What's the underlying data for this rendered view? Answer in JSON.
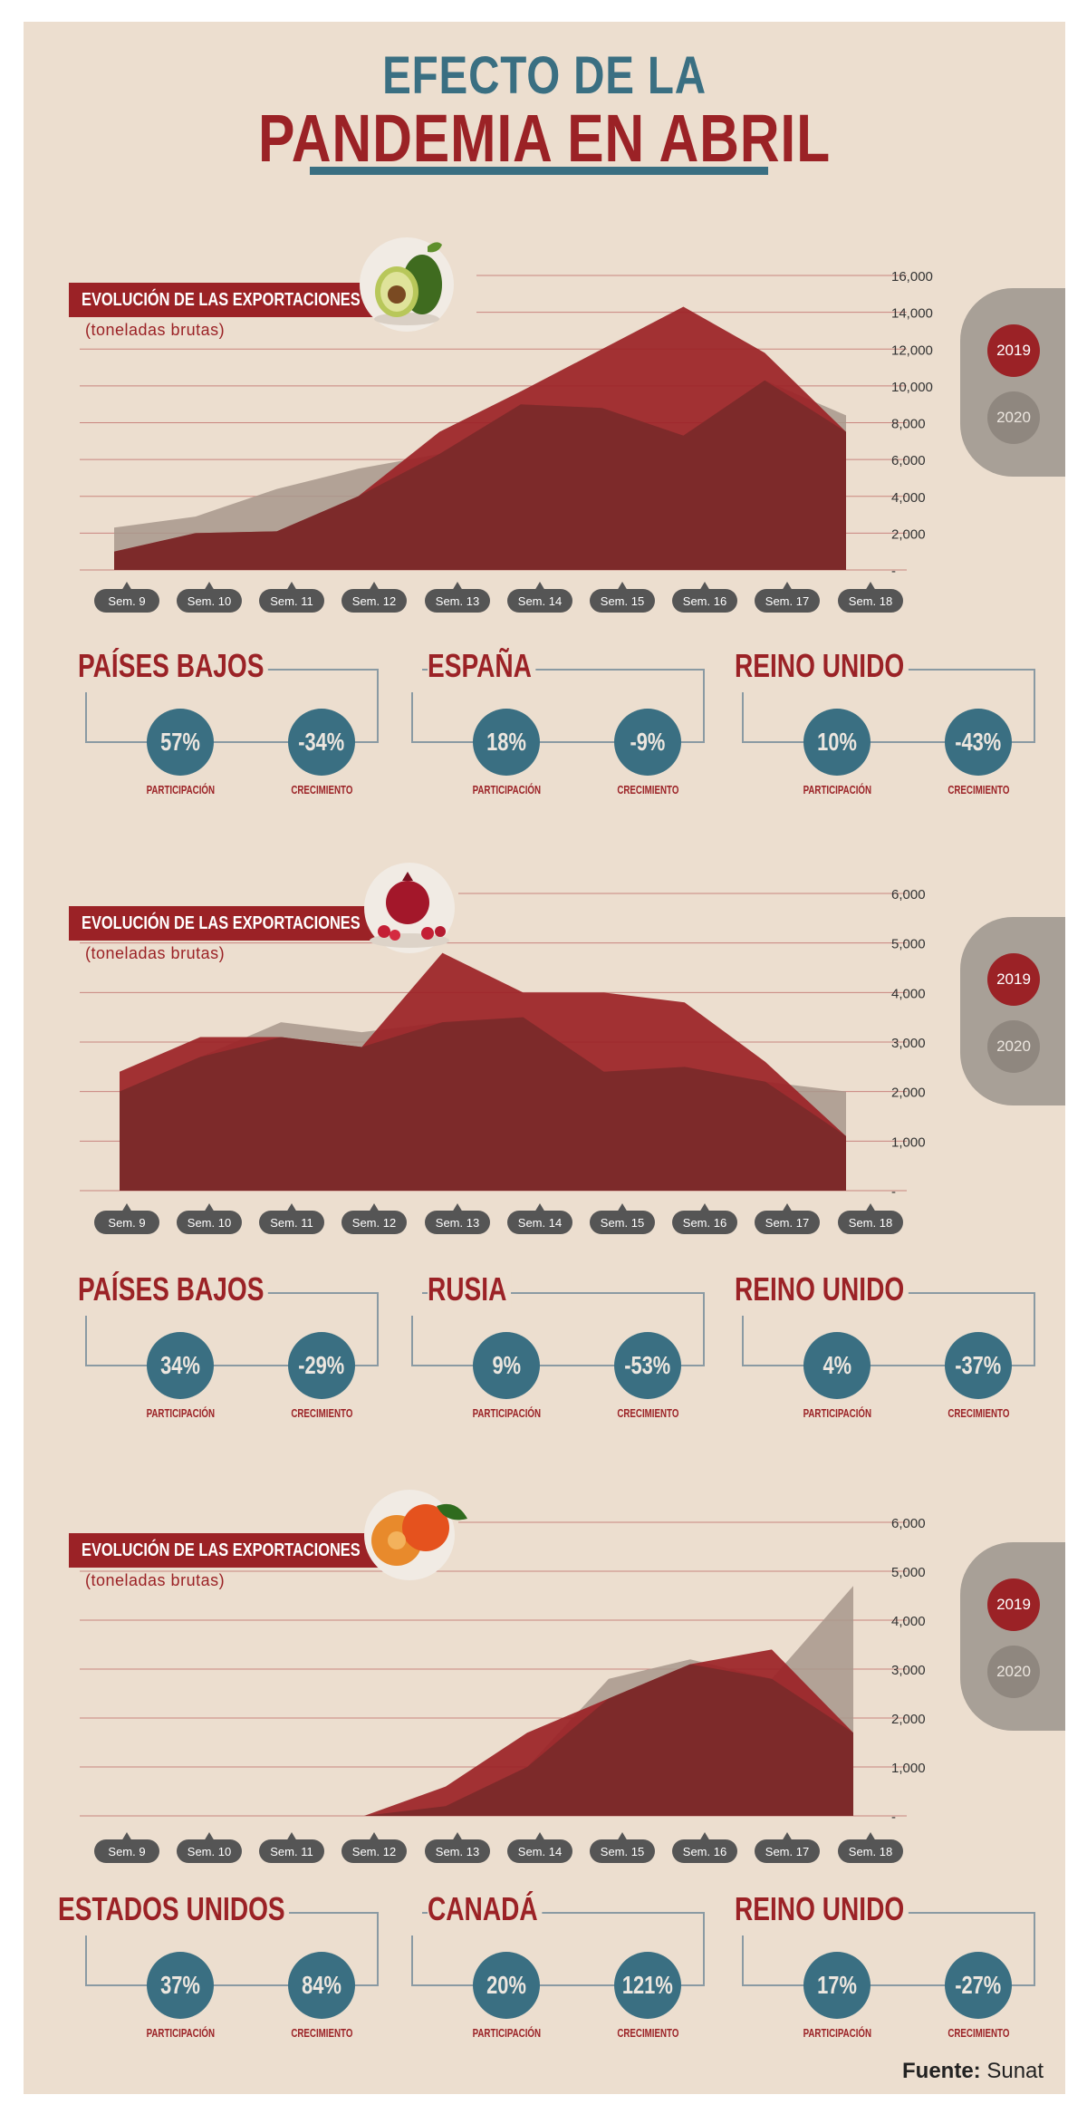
{
  "title": {
    "line1": "EFECTO DE LA",
    "line2": "PANDEMIA EN ABRIL"
  },
  "colors": {
    "series2019": "#9b2226",
    "series2020": "#a8a097",
    "accent": "#3a6f82",
    "background": "#ecdecf"
  },
  "legend": {
    "y2019": "2019",
    "y2020": "2020"
  },
  "labels": {
    "panel_title": "EVOLUCIÓN DE LAS EXPORTACIONES",
    "panel_unit": "(toneladas brutas)",
    "participation": "PARTICIPACIÓN",
    "growth": "CRECIMIENTO"
  },
  "chart_data": [
    {
      "type": "area",
      "fruit_icon": "avocado-icon",
      "x": [
        "Sem. 9",
        "Sem. 10",
        "Sem. 11",
        "Sem. 12",
        "Sem. 13",
        "Sem. 14",
        "Sem. 15",
        "Sem. 16",
        "Sem. 17",
        "Sem. 18"
      ],
      "yticks": [
        "16,000",
        "14,000",
        "12,000",
        "10,000",
        "8,000",
        "6,000",
        "4,000",
        "2,000",
        "-"
      ],
      "ylim": [
        0,
        16000
      ],
      "grid": true,
      "series": [
        {
          "name": "2019",
          "values": [
            1000,
            2000,
            2100,
            4000,
            7500,
            9700,
            12000,
            14300,
            11800,
            7500
          ]
        },
        {
          "name": "2020",
          "values": [
            2300,
            2900,
            4400,
            5500,
            6300,
            9000,
            8800,
            7300,
            10300,
            8400
          ]
        }
      ],
      "countries": [
        {
          "name": "PAÍSES BAJOS",
          "participation": "57%",
          "growth": "-34%"
        },
        {
          "name": "ESPAÑA",
          "participation": "18%",
          "growth": "-9%"
        },
        {
          "name": "REINO UNIDO",
          "participation": "10%",
          "growth": "-43%"
        }
      ]
    },
    {
      "type": "area",
      "fruit_icon": "pomegranate-icon",
      "x": [
        "Sem. 9",
        "Sem. 10",
        "Sem. 11",
        "Sem. 12",
        "Sem. 13",
        "Sem. 14",
        "Sem. 15",
        "Sem. 16",
        "Sem. 17",
        "Sem. 18"
      ],
      "yticks": [
        "6,000",
        "5,000",
        "4,000",
        "3,000",
        "2,000",
        "1,000",
        "-"
      ],
      "ylim": [
        0,
        6000
      ],
      "grid": true,
      "series": [
        {
          "name": "2019",
          "values": [
            2400,
            3100,
            3100,
            2900,
            4800,
            4000,
            4000,
            3800,
            2600,
            1100
          ]
        },
        {
          "name": "2020",
          "values": [
            2000,
            2700,
            3400,
            3200,
            3400,
            3500,
            2400,
            2500,
            2200,
            2000
          ]
        }
      ],
      "countries": [
        {
          "name": "PAÍSES BAJOS",
          "participation": "34%",
          "growth": "-29%"
        },
        {
          "name": "RUSIA",
          "participation": "9%",
          "growth": "-53%"
        },
        {
          "name": "REINO UNIDO",
          "participation": "4%",
          "growth": "-37%"
        }
      ]
    },
    {
      "type": "area",
      "fruit_icon": "mandarin-icon",
      "x": [
        "Sem. 9",
        "Sem. 10",
        "Sem. 11",
        "Sem. 12",
        "Sem. 13",
        "Sem. 14",
        "Sem. 15",
        "Sem. 16",
        "Sem. 17",
        "Sem. 18"
      ],
      "yticks": [
        "6,000",
        "5,000",
        "4,000",
        "3,000",
        "2,000",
        "1,000",
        "-"
      ],
      "ylim": [
        0,
        6000
      ],
      "grid": true,
      "series": [
        {
          "name": "2019",
          "values": [
            0,
            0,
            0,
            0,
            600,
            1700,
            2400,
            3100,
            3400,
            1700
          ]
        },
        {
          "name": "2020",
          "values": [
            0,
            0,
            0,
            0,
            200,
            1000,
            2800,
            3200,
            2800,
            4700
          ]
        }
      ],
      "countries": [
        {
          "name": "ESTADOS UNIDOS",
          "participation": "37%",
          "growth": "84%"
        },
        {
          "name": "CANADÁ",
          "participation": "20%",
          "growth": "121%"
        },
        {
          "name": "REINO UNIDO",
          "participation": "17%",
          "growth": "-27%"
        }
      ]
    }
  ],
  "source": {
    "label": "Fuente:",
    "value": "Sunat"
  }
}
